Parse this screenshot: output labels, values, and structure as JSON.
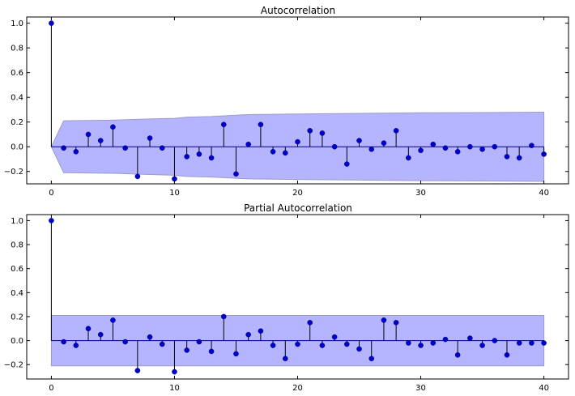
{
  "chart_data": [
    {
      "type": "stem",
      "title": "Autocorrelation",
      "xlim": [
        -2,
        42
      ],
      "ylim": [
        -0.3,
        1.05
      ],
      "xticks": [
        0,
        10,
        20,
        30,
        40
      ],
      "xtick_labels": [
        "0",
        "10",
        "20",
        "30",
        "40"
      ],
      "yticks": [
        -0.2,
        0.0,
        0.2,
        0.4,
        0.6,
        0.8,
        1.0
      ],
      "ytick_labels": [
        "−0.2",
        "0.0",
        "0.2",
        "0.4",
        "0.6",
        "0.8",
        "1.0"
      ],
      "x": [
        0,
        1,
        2,
        3,
        4,
        5,
        6,
        7,
        8,
        9,
        10,
        11,
        12,
        13,
        14,
        15,
        16,
        17,
        18,
        19,
        20,
        21,
        22,
        23,
        24,
        25,
        26,
        27,
        28,
        29,
        30,
        31,
        32,
        33,
        34,
        35,
        36,
        37,
        38,
        39,
        40
      ],
      "values": [
        1.0,
        -0.01,
        -0.04,
        0.1,
        0.05,
        0.16,
        -0.01,
        -0.24,
        0.07,
        -0.01,
        -0.26,
        -0.08,
        -0.06,
        -0.09,
        0.18,
        -0.22,
        0.02,
        0.18,
        -0.04,
        -0.05,
        0.04,
        0.13,
        0.11,
        0.0,
        -0.14,
        0.05,
        -0.02,
        0.03,
        0.13,
        -0.09,
        -0.03,
        0.02,
        -0.01,
        -0.04,
        0.0,
        -0.02,
        0.0,
        -0.08,
        -0.09,
        0.01,
        -0.06
      ],
      "confidence_band": {
        "x": [
          0,
          1,
          5,
          8,
          10,
          11,
          13,
          15,
          16,
          20,
          25,
          30,
          35,
          40
        ],
        "upper": [
          0.0,
          0.21,
          0.215,
          0.225,
          0.23,
          0.24,
          0.245,
          0.255,
          0.26,
          0.265,
          0.27,
          0.275,
          0.277,
          0.28
        ],
        "lower": [
          0.0,
          -0.21,
          -0.215,
          -0.225,
          -0.23,
          -0.24,
          -0.245,
          -0.255,
          -0.26,
          -0.265,
          -0.27,
          -0.275,
          -0.277,
          -0.28
        ]
      },
      "marker_color": "#0000cc",
      "stem_color": "#000000",
      "band_color": "#b5b5ff",
      "zero_line_color": "#00008b",
      "grid": false
    },
    {
      "type": "stem",
      "title": "Partial Autocorrelation",
      "xlim": [
        -2,
        42
      ],
      "ylim": [
        -0.32,
        1.05
      ],
      "xticks": [
        0,
        10,
        20,
        30,
        40
      ],
      "xtick_labels": [
        "0",
        "10",
        "20",
        "30",
        "40"
      ],
      "yticks": [
        -0.2,
        0.0,
        0.2,
        0.4,
        0.6,
        0.8,
        1.0
      ],
      "ytick_labels": [
        "−0.2",
        "0.0",
        "0.2",
        "0.4",
        "0.6",
        "0.8",
        "1.0"
      ],
      "x": [
        0,
        1,
        2,
        3,
        4,
        5,
        6,
        7,
        8,
        9,
        10,
        11,
        12,
        13,
        14,
        15,
        16,
        17,
        18,
        19,
        20,
        21,
        22,
        23,
        24,
        25,
        26,
        27,
        28,
        29,
        30,
        31,
        32,
        33,
        34,
        35,
        36,
        37,
        38,
        39,
        40
      ],
      "values": [
        1.0,
        -0.01,
        -0.04,
        0.1,
        0.05,
        0.17,
        -0.01,
        -0.25,
        0.03,
        -0.03,
        -0.26,
        -0.08,
        -0.01,
        -0.09,
        0.2,
        -0.11,
        0.05,
        0.08,
        -0.04,
        -0.15,
        -0.03,
        0.15,
        -0.04,
        0.03,
        -0.03,
        -0.07,
        -0.15,
        0.17,
        0.15,
        -0.02,
        -0.04,
        -0.02,
        0.01,
        -0.12,
        0.02,
        -0.04,
        0.0,
        -0.12,
        -0.02,
        -0.02,
        -0.02
      ],
      "confidence_band": {
        "x": [
          0,
          40
        ],
        "upper": [
          0.21,
          0.21
        ],
        "lower": [
          -0.21,
          -0.21
        ]
      },
      "marker_color": "#0000cc",
      "stem_color": "#000000",
      "band_color": "#b5b5ff",
      "zero_line_color": "#00008b",
      "grid": false
    }
  ]
}
